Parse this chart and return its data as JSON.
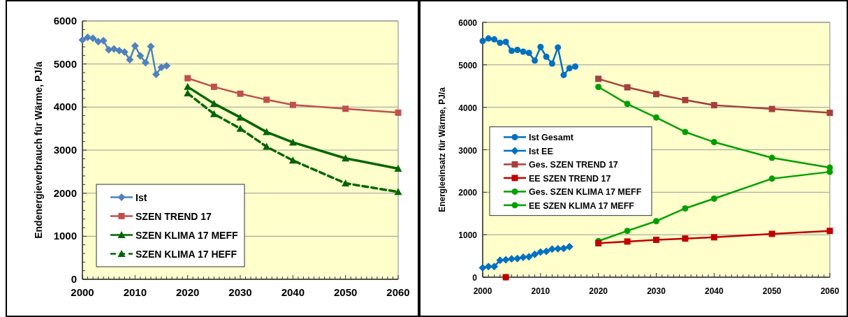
{
  "chart_data": [
    {
      "type": "line",
      "ylabel": "Endenergieverbrauch  für Wärme, PJ/a",
      "xlim": [
        2000,
        2060
      ],
      "ylim": [
        0,
        6000
      ],
      "xticks": [
        2000,
        {
          "value": 2001,
          "label": null
        },
        {
          "value": 2002,
          "label": null
        },
        {
          "value": 2003,
          "label": null
        },
        {
          "value": 2004,
          "label": null
        },
        {
          "value": 2005,
          "label": null
        },
        {
          "value": 2006,
          "label": null
        },
        {
          "value": 2007,
          "label": null
        },
        {
          "value": 2008,
          "label": null
        },
        {
          "value": 2009,
          "label": null
        },
        2010,
        {
          "value": 2011,
          "label": null
        },
        {
          "value": 2012,
          "label": null
        },
        {
          "value": 2013,
          "label": null
        },
        {
          "value": 2014,
          "label": null
        },
        {
          "value": 2015,
          "label": null
        },
        {
          "value": 2016,
          "label": null
        },
        {
          "value": 2017,
          "label": null
        },
        {
          "value": 2018,
          "label": null
        },
        {
          "value": 2019,
          "label": null
        },
        2020,
        {
          "value": 2021,
          "label": null
        },
        {
          "value": 2022,
          "label": null
        },
        {
          "value": 2023,
          "label": null
        },
        {
          "value": 2024,
          "label": null
        },
        {
          "value": 2025,
          "label": null
        },
        {
          "value": 2026,
          "label": null
        },
        {
          "value": 2027,
          "label": null
        },
        {
          "value": 2028,
          "label": null
        },
        {
          "value": 2029,
          "label": null
        },
        2030,
        {
          "value": 2031,
          "label": null
        },
        {
          "value": 2032,
          "label": null
        },
        {
          "value": 2033,
          "label": null
        },
        {
          "value": 2034,
          "label": null
        },
        {
          "value": 2035,
          "label": null
        },
        {
          "value": 2036,
          "label": null
        },
        {
          "value": 2037,
          "label": null
        },
        {
          "value": 2038,
          "label": null
        },
        {
          "value": 2039,
          "label": null
        },
        2040,
        {
          "value": 2041,
          "label": null
        },
        {
          "value": 2042,
          "label": null
        },
        {
          "value": 2043,
          "label": null
        },
        {
          "value": 2044,
          "label": null
        },
        {
          "value": 2045,
          "label": null
        },
        {
          "value": 2046,
          "label": null
        },
        {
          "value": 2047,
          "label": null
        },
        {
          "value": 2048,
          "label": null
        },
        {
          "value": 2049,
          "label": null
        },
        2050,
        {
          "value": 2051,
          "label": null
        },
        {
          "value": 2052,
          "label": null
        },
        {
          "value": 2053,
          "label": null
        },
        {
          "value": 2054,
          "label": null
        },
        {
          "value": 2055,
          "label": null
        },
        {
          "value": 2056,
          "label": null
        },
        {
          "value": 2057,
          "label": null
        },
        {
          "value": 2058,
          "label": null
        },
        {
          "value": 2059,
          "label": null
        },
        2060
      ],
      "yticks": [
        0,
        {
          "value": 200,
          "label": null
        },
        {
          "value": 400,
          "label": null
        },
        {
          "value": 600,
          "label": null
        },
        {
          "value": 800,
          "label": null
        },
        1000,
        {
          "value": 1200,
          "label": null
        },
        {
          "value": 1400,
          "label": null
        },
        {
          "value": 1600,
          "label": null
        },
        {
          "value": 1800,
          "label": null
        },
        2000,
        {
          "value": 2200,
          "label": null
        },
        {
          "value": 2400,
          "label": null
        },
        {
          "value": 2600,
          "label": null
        },
        {
          "value": 2800,
          "label": null
        },
        3000,
        {
          "value": 3200,
          "label": null
        },
        {
          "value": 3400,
          "label": null
        },
        {
          "value": 3600,
          "label": null
        },
        {
          "value": 3800,
          "label": null
        },
        4000,
        {
          "value": 4200,
          "label": null
        },
        {
          "value": 4400,
          "label": null
        },
        {
          "value": 4600,
          "label": null
        },
        {
          "value": 4800,
          "label": null
        },
        5000,
        {
          "value": 5200,
          "label": null
        },
        {
          "value": 5400,
          "label": null
        },
        {
          "value": 5600,
          "label": null
        },
        {
          "value": 5800,
          "label": null
        },
        6000
      ],
      "grid": "y",
      "legend": "bottom left",
      "series": [
        {
          "name": "Ist",
          "color": "#4f81bd",
          "marker": "diamond",
          "line_style": "solid",
          "x": [
            2000,
            2001,
            2002,
            2003,
            2004,
            2005,
            2006,
            2007,
            2008,
            2009,
            2010,
            2011,
            2012,
            2013,
            2014,
            2015,
            2016
          ],
          "values": [
            5560,
            5620,
            5600,
            5520,
            5540,
            5330,
            5350,
            5310,
            5280,
            5100,
            5420,
            5190,
            5030,
            5410,
            4760,
            4920,
            4960
          ]
        },
        {
          "name": "SZEN TREND 17",
          "color": "#c0504d",
          "marker": "square",
          "line_style": "solid",
          "x": [
            2020,
            2025,
            2030,
            2035,
            2040,
            2050,
            2060
          ],
          "values": [
            4670,
            4470,
            4310,
            4170,
            4050,
            3960,
            3870
          ]
        },
        {
          "name": "SZEN KLIMA 17 MEFF",
          "color": "#006600",
          "marker": "triangle",
          "line_style": "solid",
          "x": [
            2020,
            2025,
            2030,
            2035,
            2040,
            2050,
            2060
          ],
          "values": [
            4470,
            4080,
            3760,
            3420,
            3180,
            2810,
            2570
          ]
        },
        {
          "name": "SZEN KLIMA 17 HEFF",
          "color": "#006600",
          "marker": "triangle",
          "line_style": "dashed",
          "x": [
            2020,
            2025,
            2030,
            2035,
            2040,
            2050,
            2060
          ],
          "values": [
            4320,
            3840,
            3500,
            3080,
            2760,
            2230,
            2030
          ]
        }
      ]
    },
    {
      "type": "line",
      "ylabel": "Energieeinsatz für Wärme, PJ/a",
      "xlim": [
        2000,
        2060
      ],
      "ylim": [
        0,
        6000
      ],
      "xticks": [
        2000,
        {
          "value": 2001,
          "label": null
        },
        {
          "value": 2002,
          "label": null
        },
        {
          "value": 2003,
          "label": null
        },
        {
          "value": 2004,
          "label": null
        },
        {
          "value": 2005,
          "label": null
        },
        {
          "value": 2006,
          "label": null
        },
        {
          "value": 2007,
          "label": null
        },
        {
          "value": 2008,
          "label": null
        },
        {
          "value": 2009,
          "label": null
        },
        2010,
        {
          "value": 2011,
          "label": null
        },
        {
          "value": 2012,
          "label": null
        },
        {
          "value": 2013,
          "label": null
        },
        {
          "value": 2014,
          "label": null
        },
        {
          "value": 2015,
          "label": null
        },
        {
          "value": 2016,
          "label": null
        },
        {
          "value": 2017,
          "label": null
        },
        {
          "value": 2018,
          "label": null
        },
        {
          "value": 2019,
          "label": null
        },
        2020,
        {
          "value": 2021,
          "label": null
        },
        {
          "value": 2022,
          "label": null
        },
        {
          "value": 2023,
          "label": null
        },
        {
          "value": 2024,
          "label": null
        },
        {
          "value": 2025,
          "label": null
        },
        {
          "value": 2026,
          "label": null
        },
        {
          "value": 2027,
          "label": null
        },
        {
          "value": 2028,
          "label": null
        },
        {
          "value": 2029,
          "label": null
        },
        2030,
        {
          "value": 2031,
          "label": null
        },
        {
          "value": 2032,
          "label": null
        },
        {
          "value": 2033,
          "label": null
        },
        {
          "value": 2034,
          "label": null
        },
        {
          "value": 2035,
          "label": null
        },
        {
          "value": 2036,
          "label": null
        },
        {
          "value": 2037,
          "label": null
        },
        {
          "value": 2038,
          "label": null
        },
        {
          "value": 2039,
          "label": null
        },
        2040,
        {
          "value": 2041,
          "label": null
        },
        {
          "value": 2042,
          "label": null
        },
        {
          "value": 2043,
          "label": null
        },
        {
          "value": 2044,
          "label": null
        },
        {
          "value": 2045,
          "label": null
        },
        {
          "value": 2046,
          "label": null
        },
        {
          "value": 2047,
          "label": null
        },
        {
          "value": 2048,
          "label": null
        },
        {
          "value": 2049,
          "label": null
        },
        2050,
        {
          "value": 2051,
          "label": null
        },
        {
          "value": 2052,
          "label": null
        },
        {
          "value": 2053,
          "label": null
        },
        {
          "value": 2054,
          "label": null
        },
        {
          "value": 2055,
          "label": null
        },
        {
          "value": 2056,
          "label": null
        },
        {
          "value": 2057,
          "label": null
        },
        {
          "value": 2058,
          "label": null
        },
        {
          "value": 2059,
          "label": null
        },
        2060
      ],
      "yticks": [
        0,
        1000,
        2000,
        3000,
        4000,
        5000,
        6000
      ],
      "grid": "y",
      "legend": "left",
      "series": [
        {
          "name": "Ist  Gesamt",
          "color": "#0070c0",
          "marker": "circle",
          "line_style": "solid",
          "x": [
            2000,
            2001,
            2002,
            2003,
            2004,
            2005,
            2006,
            2007,
            2008,
            2009,
            2010,
            2011,
            2012,
            2013,
            2014,
            2015,
            2016
          ],
          "values": [
            5560,
            5620,
            5600,
            5520,
            5540,
            5330,
            5350,
            5310,
            5280,
            5100,
            5420,
            5190,
            5030,
            5410,
            4760,
            4920,
            4960
          ]
        },
        {
          "name": "Ist EE",
          "color": "#0070c0",
          "marker": "diamond",
          "line_style": "solid",
          "x": [
            2000,
            2001,
            2002,
            2003,
            2004,
            2005,
            2006,
            2007,
            2008,
            2009,
            2010,
            2011,
            2012,
            2013,
            2014,
            2015
          ],
          "values": [
            220,
            250,
            250,
            400,
            410,
            430,
            440,
            470,
            480,
            540,
            590,
            610,
            660,
            670,
            680,
            720
          ]
        },
        {
          "name": "Ges. SZEN TREND 17",
          "color": "#a5403c",
          "marker": "square",
          "line_style": "solid",
          "x": [
            2020,
            2025,
            2030,
            2035,
            2040,
            2050,
            2060
          ],
          "values": [
            4670,
            4470,
            4310,
            4170,
            4050,
            3960,
            3870
          ]
        },
        {
          "name": "EE  SZEN TREND 17",
          "color": "#c00000",
          "marker": "square",
          "line_style": "solid",
          "x": [
            2004,
            2012,
            2020,
            2025,
            2030,
            2035,
            2040,
            2050,
            2060
          ],
          "values": [
            0,
            null,
            800,
            840,
            880,
            910,
            940,
            1020,
            1090
          ]
        },
        {
          "name": "Ges. SZEN KLIMA 17 MEFF",
          "color": "#00a000",
          "marker": "circle",
          "line_style": "solid",
          "x": [
            2020,
            2025,
            2030,
            2035,
            2040,
            2050,
            2060
          ],
          "values": [
            4480,
            4080,
            3760,
            3420,
            3180,
            2810,
            2580
          ]
        },
        {
          "name": "EE SZEN KLIMA 17 MEFF",
          "color": "#00a000",
          "marker": "circle",
          "line_style": "solid",
          "x": [
            2004,
            2012,
            2020,
            2025,
            2030,
            2035,
            2040,
            2050,
            2060
          ],
          "values": [
            0,
            null,
            850,
            1090,
            1320,
            1620,
            1850,
            2320,
            2480
          ]
        }
      ]
    }
  ]
}
